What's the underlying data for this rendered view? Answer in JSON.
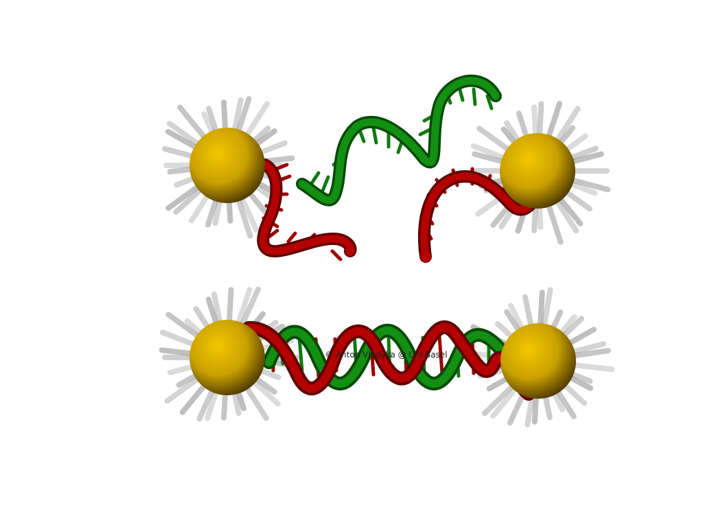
{
  "figure": {
    "subject": "DNA hybridization between gold nanoparticles",
    "credit": "© Anton Vladyka @ Uni Basel"
  },
  "colors": {
    "background": "#ffffff",
    "gold_light": "#f2c800",
    "gold_mid": "#c9a000",
    "gold_dark": "#3a2c00",
    "strand_red": "#9c0000",
    "strand_red_dark": "#600000",
    "strand_green": "#0e7a0e",
    "strand_green_dark": "#064a06",
    "ligand_gray": "#9a9a9a"
  },
  "panels": [
    {
      "id": "separated",
      "state": "single strands"
    },
    {
      "id": "hybridized",
      "state": "double helix"
    }
  ]
}
